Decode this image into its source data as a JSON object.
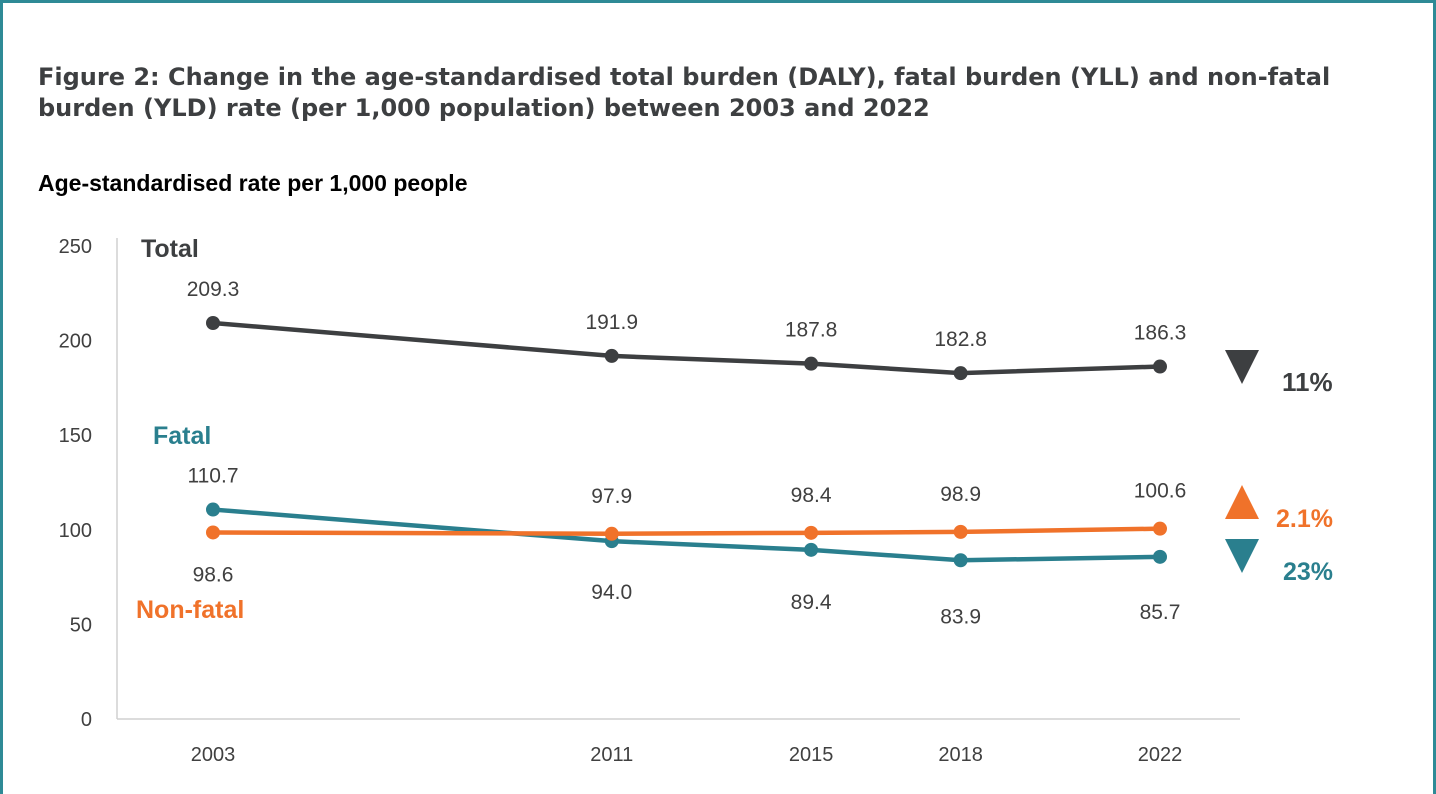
{
  "figure": {
    "title": "Figure 2: Change in the age-standardised total burden (DALY), fatal burden (YLL) and non-fatal burden (YLD) rate (per 1,000 population) between 2003 and 2022"
  },
  "chart_data": {
    "type": "line",
    "title": "Age-standardised rate per 1,000 people",
    "xlabel": "",
    "ylabel": "",
    "x": [
      2003,
      2011,
      2015,
      2018,
      2022
    ],
    "ylim": [
      0,
      250
    ],
    "yticks": [
      0,
      50,
      100,
      150,
      200,
      250
    ],
    "grid": false,
    "series": [
      {
        "key": "total",
        "name": "Total",
        "color": "#3d3f41",
        "values": [
          209.3,
          191.9,
          187.8,
          182.8,
          186.3
        ],
        "labels": [
          "209.3",
          "191.9",
          "187.8",
          "182.8",
          "186.3"
        ],
        "change": {
          "direction": "down",
          "text": "11%"
        }
      },
      {
        "key": "fatal",
        "name": "Fatal",
        "color": "#2a7f8e",
        "values": [
          110.7,
          94.0,
          89.4,
          83.9,
          85.7
        ],
        "labels": [
          "110.7",
          "94.0",
          "89.4",
          "83.9",
          "85.7"
        ],
        "change": {
          "direction": "down",
          "text": "23%"
        }
      },
      {
        "key": "nonfatal",
        "name": "Non-fatal",
        "color": "#f0722a",
        "values": [
          98.6,
          97.9,
          98.4,
          98.9,
          100.6
        ],
        "labels": [
          "98.6",
          "97.9",
          "98.4",
          "98.9",
          "100.6"
        ],
        "change": {
          "direction": "up",
          "text": "2.1%"
        }
      }
    ]
  }
}
